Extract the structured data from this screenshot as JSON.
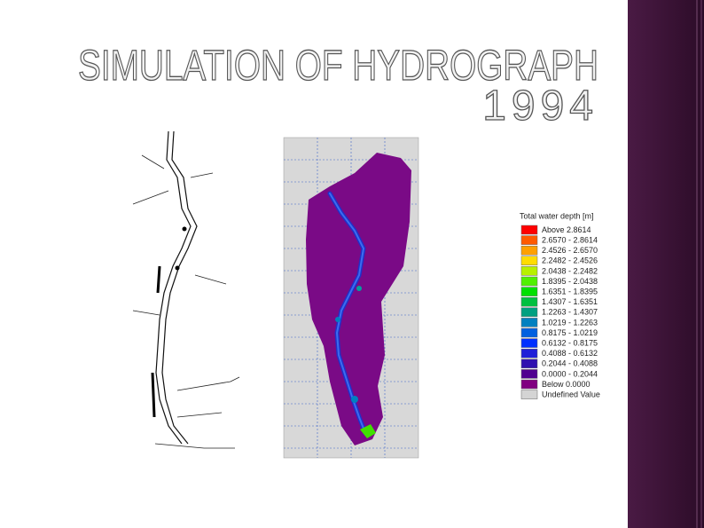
{
  "header": {
    "title_line1": "SIMULATION OF HYDROGRAPH",
    "title_line2": "1994"
  },
  "legend": {
    "title": "Total water depth [m]",
    "entries": [
      {
        "label": "Above 2.8614",
        "color": "#ff0000"
      },
      {
        "label": "2.6570 - 2.8614",
        "color": "#ff5a00"
      },
      {
        "label": "2.4526 - 2.6570",
        "color": "#ffa000"
      },
      {
        "label": "2.2482 - 2.4526",
        "color": "#ffdc00"
      },
      {
        "label": "2.0438 - 2.2482",
        "color": "#b8f000"
      },
      {
        "label": "1.8395 - 2.0438",
        "color": "#50f000"
      },
      {
        "label": "1.6351 - 1.8395",
        "color": "#00e000"
      },
      {
        "label": "1.4307 - 1.6351",
        "color": "#00c040"
      },
      {
        "label": "1.2263 - 1.4307",
        "color": "#00a080"
      },
      {
        "label": "1.0219 - 1.2263",
        "color": "#0080c0"
      },
      {
        "label": "0.8175 - 1.0219",
        "color": "#0060e0"
      },
      {
        "label": "0.6132 - 0.8175",
        "color": "#0030ff"
      },
      {
        "label": "0.4088 - 0.6132",
        "color": "#2020d8"
      },
      {
        "label": "0.2044 - 0.4088",
        "color": "#3010b0"
      },
      {
        "label": "0.0000 - 0.2044",
        "color": "#500090"
      },
      {
        "label": "Below 0.0000",
        "color": "#800080"
      },
      {
        "label": "Undefined Value",
        "color": "#d4d4d4"
      }
    ]
  }
}
